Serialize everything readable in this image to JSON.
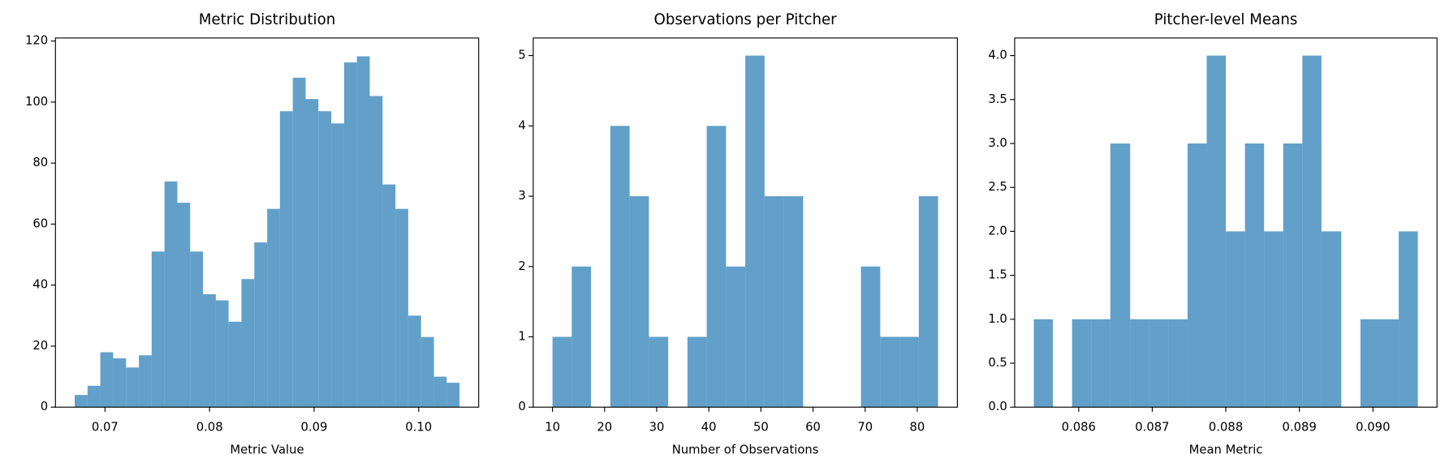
{
  "chart_data": [
    {
      "type": "histogram",
      "title": "Metric Distribution",
      "xlabel": "Metric Value",
      "color": "#1f77b4",
      "alpha": 0.7,
      "bins": [
        0.0671,
        0.06833,
        0.06955,
        0.07078,
        0.07201,
        0.07324,
        0.07446,
        0.07569,
        0.07692,
        0.07814,
        0.07937,
        0.0806,
        0.08182,
        0.08305,
        0.08428,
        0.08551,
        0.08673,
        0.08796,
        0.08919,
        0.09041,
        0.09164,
        0.09287,
        0.09409,
        0.09532,
        0.09655,
        0.09778,
        0.099,
        0.10023,
        0.10146,
        0.10268,
        0.10391
      ],
      "counts": [
        4,
        7,
        18,
        16,
        13,
        17,
        51,
        74,
        67,
        51,
        37,
        35,
        28,
        42,
        54,
        65,
        97,
        108,
        101,
        97,
        93,
        113,
        115,
        102,
        73,
        65,
        30,
        23,
        10,
        8
      ],
      "xlim": [
        0.06526,
        0.10574
      ],
      "ylim": [
        0,
        121
      ],
      "xticks": [
        0.07,
        0.08,
        0.09,
        {
          "value": 0.1,
          "label": "0.10"
        }
      ],
      "yticks": [
        0,
        20,
        40,
        60,
        80,
        100,
        120
      ]
    },
    {
      "type": "histogram",
      "title": "Observations per Pitcher",
      "xlabel": "Number of Observations",
      "color": "#1f77b4",
      "alpha": 0.7,
      "bins": [
        10,
        13.7,
        17.4,
        21.1,
        24.8,
        28.5,
        32.2,
        35.9,
        39.6,
        43.3,
        47,
        50.7,
        54.4,
        58.1,
        61.8,
        65.5,
        69.2,
        72.9,
        76.6,
        80.3,
        84
      ],
      "counts": [
        1,
        2,
        0,
        4,
        3,
        1,
        0,
        1,
        4,
        2,
        5,
        3,
        3,
        0,
        0,
        0,
        2,
        1,
        1,
        3
      ],
      "xlim": [
        6.3,
        87.7
      ],
      "ylim": [
        0,
        5.25
      ],
      "xticks": [
        10,
        20,
        30,
        40,
        50,
        60,
        70,
        80
      ],
      "yticks": [
        0,
        1,
        2,
        3,
        4,
        5
      ]
    },
    {
      "type": "histogram",
      "title": "Pitcher-level Means",
      "xlabel": "Mean Metric",
      "color": "#1f77b4",
      "alpha": 0.7,
      "bins": [
        0.08539,
        0.08565,
        0.08591,
        0.08617,
        0.08643,
        0.0867,
        0.08696,
        0.08722,
        0.08748,
        0.08774,
        0.088,
        0.08826,
        0.08852,
        0.08878,
        0.08904,
        0.0893,
        0.08957,
        0.08983,
        0.09009,
        0.09035,
        0.09061
      ],
      "counts": [
        1,
        0,
        1,
        1,
        3,
        1,
        1,
        1,
        3,
        4,
        2,
        3,
        2,
        3,
        4,
        2,
        0,
        1,
        1,
        2
      ],
      "xlim": [
        0.08513,
        0.09087
      ],
      "ylim": [
        0,
        4.2
      ],
      "xticks": [
        0.086,
        0.087,
        0.088,
        0.089,
        {
          "value": 0.09,
          "label": "0.090"
        }
      ],
      "yticks": [
        {
          "value": 0,
          "label": "0.0"
        },
        0.5,
        {
          "value": 1,
          "label": "1.0"
        },
        1.5,
        {
          "value": 2,
          "label": "2.0"
        },
        2.5,
        {
          "value": 3,
          "label": "3.0"
        },
        3.5,
        {
          "value": 4,
          "label": "4.0"
        }
      ]
    }
  ]
}
